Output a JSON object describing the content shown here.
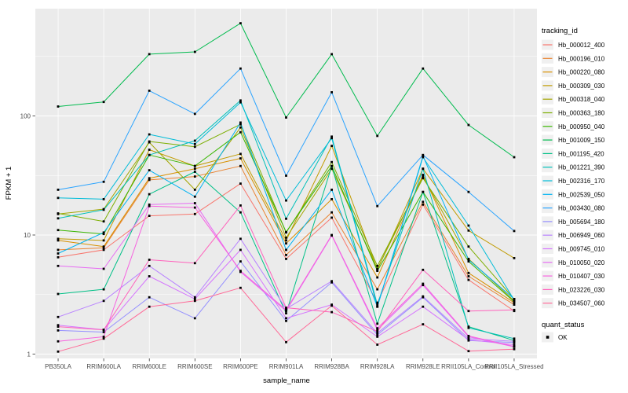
{
  "figure": {
    "background": "#FFFFFF",
    "panel_background": "#EBEBEB",
    "grid_color": "#FFFFFF",
    "tick_label_color": "#4D4D4D",
    "text_color": "#000000",
    "point_color": "#000000",
    "legend_key_background": "#F0F0F0"
  },
  "chart_data": {
    "type": "line",
    "title": "",
    "xlabel": "sample_name",
    "ylabel": "FPKM + 1",
    "y_scale": "log10",
    "y_ticks": [
      1,
      10,
      100
    ],
    "y_tick_labels": [
      "1",
      "10",
      "100"
    ],
    "y_minor_ticks": [
      3.162,
      31.62,
      316.2
    ],
    "ylim": [
      0.93,
      790
    ],
    "grid": true,
    "legend_position": "right",
    "legend_title": "tracking_id",
    "point_legend_title": "quant_status",
    "point_legend_items": [
      "OK"
    ],
    "point_shape": "square",
    "categories": [
      "PB350LA",
      "RRIM600LA",
      "RRIM600LE",
      "RRIM600SE",
      "RRIM600PE",
      "RRIM901LA",
      "RRIM928BA",
      "RRIM928LA",
      "RRIM928LE",
      "RRII105LA_Control",
      "RRII105LA_Stressed"
    ],
    "series": [
      {
        "name": "Hb_000012_400",
        "color": "#F8766D",
        "values": [
          6.5,
          7.5,
          14.5,
          15,
          27,
          6.3,
          14,
          2.7,
          18,
          4.2,
          2.3
        ]
      },
      {
        "name": "Hb_000196_010",
        "color": "#EA8331",
        "values": [
          7.5,
          7.8,
          29,
          31,
          38,
          6.8,
          15.5,
          3.5,
          19,
          4.5,
          2.6
        ]
      },
      {
        "name": "Hb_000220_080",
        "color": "#D89000",
        "values": [
          9.0,
          8.0,
          30,
          36,
          44,
          8.5,
          20,
          4.4,
          32,
          4.8,
          2.7
        ]
      },
      {
        "name": "Hb_000309_030",
        "color": "#C09B00",
        "values": [
          9.3,
          9.0,
          52,
          38,
          48,
          9.0,
          56,
          5.1,
          36,
          10.9,
          6.4
        ]
      },
      {
        "name": "Hb_000318_040",
        "color": "#A3A500",
        "values": [
          15.0,
          16.5,
          60,
          24,
          80,
          9.5,
          36,
          5.2,
          31,
          6.3,
          2.8
        ]
      },
      {
        "name": "Hb_000363_180",
        "color": "#7CAE00",
        "values": [
          15.2,
          13,
          61,
          55,
          85,
          10.5,
          41,
          5.5,
          30,
          8.0,
          2.9
        ]
      },
      {
        "name": "Hb_000950_040",
        "color": "#39B600",
        "values": [
          11,
          10.2,
          47,
          38,
          73,
          10.6,
          38,
          5.0,
          23,
          6.0,
          2.75
        ]
      },
      {
        "name": "Hb_001009_150",
        "color": "#00BB4E",
        "values": [
          120,
          131,
          330,
          345,
          600,
          97,
          330,
          68,
          250,
          84,
          45
        ]
      },
      {
        "name": "Hb_001195_420",
        "color": "#00C087",
        "values": [
          3.2,
          3.5,
          22,
          34,
          15.5,
          2.2,
          38,
          1.8,
          23,
          1.7,
          1.3
        ]
      },
      {
        "name": "Hb_001221_390",
        "color": "#00C0B8",
        "values": [
          13.8,
          16.3,
          47,
          62,
          135,
          13.7,
          67,
          2.6,
          36,
          1.66,
          1.35
        ]
      },
      {
        "name": "Hb_002316_170",
        "color": "#00BCD8",
        "values": [
          20.5,
          20,
          70,
          58,
          130,
          19.5,
          65,
          2.5,
          45,
          12,
          2.85
        ]
      },
      {
        "name": "Hb_002539_050",
        "color": "#00B3F2",
        "values": [
          7.0,
          10.5,
          35,
          21,
          88,
          7.5,
          24,
          2.5,
          46,
          6.2,
          2.9
        ]
      },
      {
        "name": "Hb_003430_080",
        "color": "#29A3FF",
        "values": [
          24,
          28,
          163,
          104,
          250,
          31.5,
          158,
          17.5,
          47,
          23,
          10.8
        ]
      },
      {
        "name": "Hb_005694_180",
        "color": "#9590FF",
        "values": [
          1.58,
          1.53,
          3.0,
          2.0,
          6.0,
          1.9,
          4.0,
          1.45,
          3.0,
          1.3,
          1.25
        ]
      },
      {
        "name": "Hb_006949_060",
        "color": "#B983FF",
        "values": [
          2.05,
          2.8,
          5.5,
          3.0,
          9.3,
          2.4,
          4.1,
          1.5,
          3.05,
          1.35,
          1.28
        ]
      },
      {
        "name": "Hb_009745_010",
        "color": "#D575FE",
        "values": [
          1.75,
          1.6,
          4.5,
          2.9,
          7.5,
          2.0,
          2.6,
          1.4,
          2.5,
          1.32,
          1.2
        ]
      },
      {
        "name": "Hb_010050_020",
        "color": "#E76BF3",
        "values": [
          5.5,
          5.2,
          18,
          18.5,
          4.9,
          2.3,
          9.9,
          1.6,
          3.8,
          1.4,
          1.15
        ]
      },
      {
        "name": "Hb_010407_030",
        "color": "#F763E0",
        "values": [
          1.28,
          1.4,
          17.5,
          17,
          5.0,
          2.35,
          10,
          1.65,
          3.9,
          1.42,
          1.16
        ]
      },
      {
        "name": "Hb_023226_030",
        "color": "#FF62BC",
        "values": [
          1.7,
          1.6,
          6.2,
          5.8,
          17.7,
          2.45,
          2.25,
          1.55,
          5.1,
          2.3,
          2.35
        ]
      },
      {
        "name": "Hb_034507_060",
        "color": "#FF6A98",
        "values": [
          1.05,
          1.35,
          2.5,
          2.8,
          3.6,
          1.26,
          2.55,
          1.2,
          1.78,
          1.06,
          1.1
        ]
      }
    ]
  }
}
